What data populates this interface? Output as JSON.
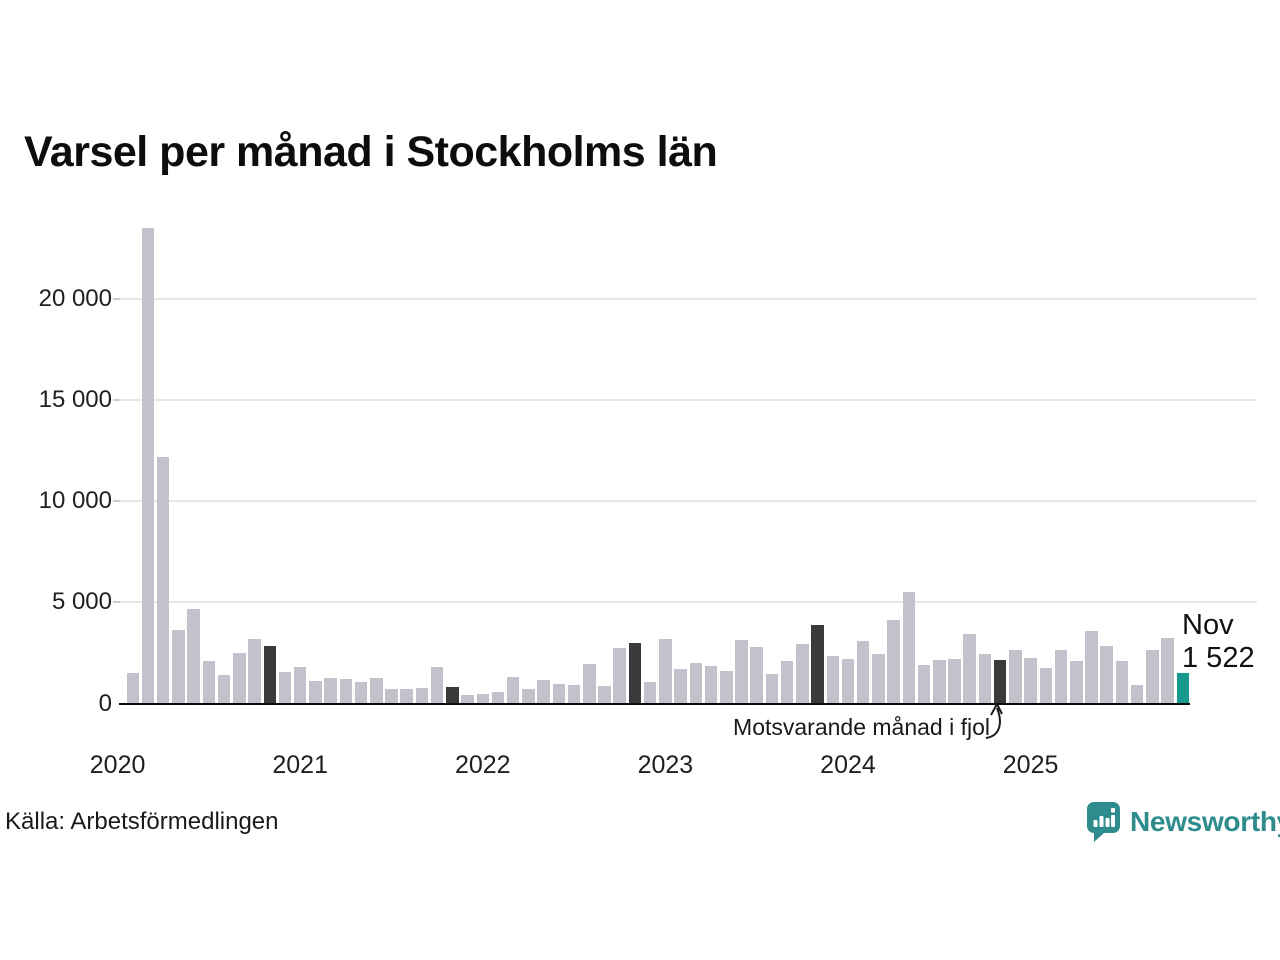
{
  "title": "Varsel per månad i Stockholms län",
  "source": "Källa: Arbetsförmedlingen",
  "annotation": {
    "text": "Motsvarande månad i fjol"
  },
  "current_label": {
    "month": "Nov",
    "value": "1 522"
  },
  "branding": {
    "name": "Newsworthy"
  },
  "colors": {
    "bar": "#c4c1cd",
    "compare_bar": "#3a3a3c",
    "current_bar": "#169a8d",
    "grid": "#e7e7e7",
    "axis": "#0a0a0a",
    "brand": "#2e8c8c"
  },
  "chart_data": {
    "type": "bar",
    "title": "Varsel per månad i Stockholms län",
    "xlabel": "",
    "ylabel": "",
    "ylim": [
      0,
      23600
    ],
    "grid": "horizontal",
    "legend_position": "none",
    "months": [
      "2020-02",
      "2020-03",
      "2020-04",
      "2020-05",
      "2020-06",
      "2020-07",
      "2020-08",
      "2020-09",
      "2020-10",
      "2020-11",
      "2020-12",
      "2021-01",
      "2021-02",
      "2021-03",
      "2021-04",
      "2021-05",
      "2021-06",
      "2021-07",
      "2021-08",
      "2021-09",
      "2021-10",
      "2021-11",
      "2021-12",
      "2022-01",
      "2022-02",
      "2022-03",
      "2022-04",
      "2022-05",
      "2022-06",
      "2022-07",
      "2022-08",
      "2022-09",
      "2022-10",
      "2022-11",
      "2022-12",
      "2023-01",
      "2023-02",
      "2023-03",
      "2023-04",
      "2023-05",
      "2023-06",
      "2023-07",
      "2023-08",
      "2023-09",
      "2023-10",
      "2023-11",
      "2023-12",
      "2024-01",
      "2024-02",
      "2024-03",
      "2024-04",
      "2024-05",
      "2024-06",
      "2024-07",
      "2024-08",
      "2024-09",
      "2024-10",
      "2024-11",
      "2024-12",
      "2025-01",
      "2025-02",
      "2025-03",
      "2025-04",
      "2025-05",
      "2025-06",
      "2025-07",
      "2025-08",
      "2025-09",
      "2025-10",
      "2025-11"
    ],
    "values": [
      1490,
      23540,
      12200,
      3660,
      4690,
      2120,
      1390,
      2500,
      3190,
      2870,
      1570,
      1820,
      1100,
      1280,
      1200,
      1050,
      1280,
      740,
      740,
      770,
      1810,
      820,
      420,
      490,
      590,
      1310,
      710,
      1150,
      970,
      940,
      1940,
      880,
      2740,
      2980,
      1070,
      3180,
      1700,
      2020,
      1860,
      1620,
      3140,
      2780,
      1480,
      2130,
      2930,
      3880,
      2350,
      2220,
      3090,
      2460,
      4130,
      5510,
      1920,
      2160,
      2200,
      3420,
      2450,
      2140,
      2640,
      2240,
      1780,
      2650,
      2110,
      3580,
      2860,
      2130,
      900,
      2650,
      3230,
      1522
    ],
    "compare_month_indices": [
      9,
      21,
      33,
      45,
      57
    ],
    "current_month_index": 69,
    "current_point_label": "Nov 1 522",
    "annotation_label": "Motsvarande månad i fjol",
    "y_axis": {
      "ticks": [
        {
          "value": 0,
          "label": "0"
        },
        {
          "value": 5000,
          "label": "5 000"
        },
        {
          "value": 10000,
          "label": "10 000"
        },
        {
          "value": 15000,
          "label": "15 000"
        },
        {
          "value": 20000,
          "label": "20 000"
        }
      ]
    },
    "x_axis": {
      "ticks": [
        {
          "label": "2020",
          "jan_index": -1
        },
        {
          "label": "2021",
          "jan_index": 11
        },
        {
          "label": "2022",
          "jan_index": 23
        },
        {
          "label": "2023",
          "jan_index": 35
        },
        {
          "label": "2024",
          "jan_index": 47
        },
        {
          "label": "2025",
          "jan_index": 59
        }
      ]
    }
  }
}
